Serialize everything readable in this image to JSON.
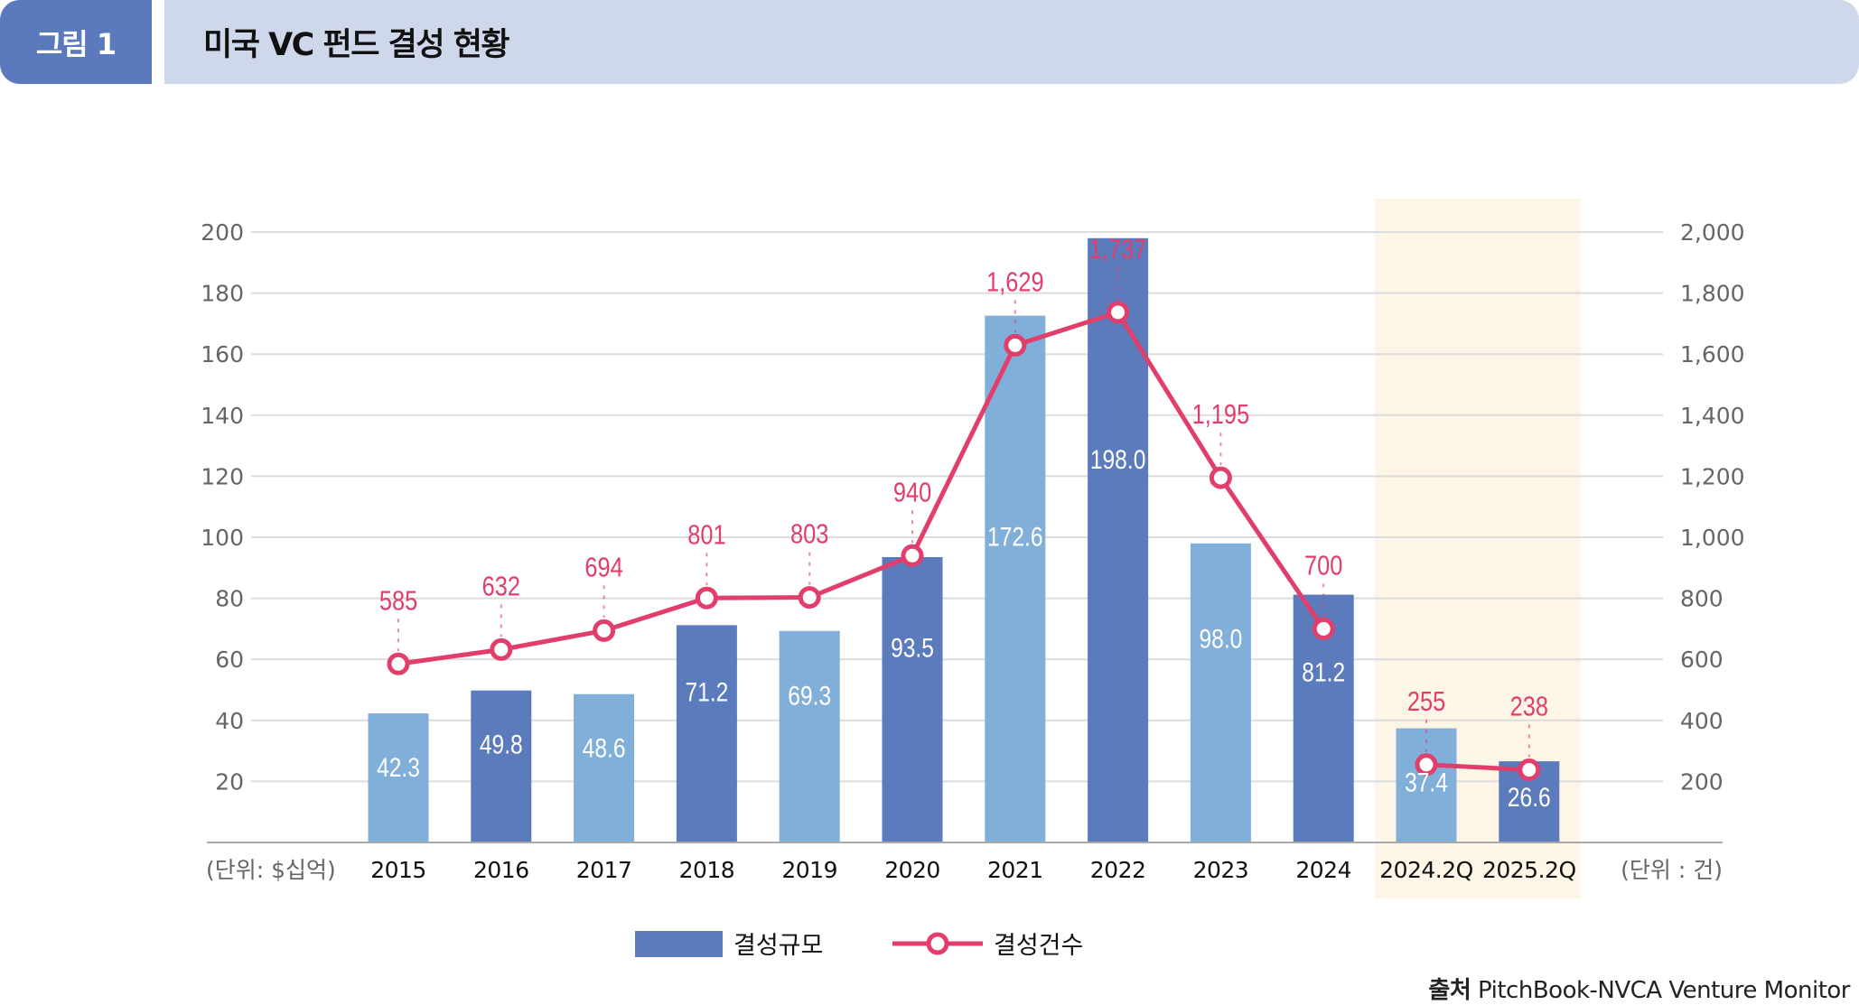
{
  "header": {
    "tag": "그림 1",
    "title": "미국 VC 펀드 결성 현황"
  },
  "colors": {
    "bar_dark": "#5b7bbd",
    "bar_light": "#80afd9",
    "line": "#e23e6b",
    "highlight": "#fdf5e6",
    "grid": "#dcdcdc"
  },
  "chart_data": {
    "type": "bar+line",
    "title": "미국 VC 펀드 결성 현황",
    "categories": [
      "2015",
      "2016",
      "2017",
      "2018",
      "2019",
      "2020",
      "2021",
      "2022",
      "2023",
      "2024",
      "2024.2Q",
      "2025.2Q"
    ],
    "series": [
      {
        "name": "결성규모",
        "type": "bar",
        "axis": "left",
        "values": [
          42.3,
          49.8,
          48.6,
          71.2,
          69.3,
          93.5,
          172.6,
          198.0,
          98.0,
          81.2,
          37.4,
          26.6
        ],
        "labels": [
          "42.3",
          "49.8",
          "48.6",
          "71.2",
          "69.3",
          "93.5",
          "172.6",
          "198.0",
          "98.0",
          "81.2",
          "37.4",
          "26.6"
        ],
        "shade": [
          "light",
          "dark",
          "light",
          "dark",
          "light",
          "dark",
          "light",
          "dark",
          "light",
          "dark",
          "light",
          "dark"
        ]
      },
      {
        "name": "결성건수",
        "type": "line",
        "axis": "right",
        "values": [
          585,
          632,
          694,
          801,
          803,
          940,
          1629,
          1737,
          1195,
          700,
          255,
          238
        ],
        "labels": [
          "585",
          "632",
          "694",
          "801",
          "803",
          "940",
          "1,629",
          "1,737",
          "1,195",
          "700",
          "255",
          "238"
        ],
        "segments": [
          [
            0,
            9
          ],
          [
            10,
            11
          ]
        ]
      }
    ],
    "left_axis": {
      "label": "(단위: $십억)",
      "ylim": [
        0,
        200
      ],
      "ticks": [
        "20",
        "40",
        "60",
        "80",
        "100",
        "120",
        "140",
        "160",
        "180",
        "200"
      ],
      "tick_values": [
        20,
        40,
        60,
        80,
        100,
        120,
        140,
        160,
        180,
        200
      ]
    },
    "right_axis": {
      "label": "(단위 : 건)",
      "ylim": [
        0,
        2000
      ],
      "ticks": [
        "200",
        "400",
        "600",
        "800",
        "1,000",
        "1,200",
        "1,400",
        "1,600",
        "1,800",
        "2,000"
      ],
      "tick_values": [
        200,
        400,
        600,
        800,
        1000,
        1200,
        1400,
        1600,
        1800,
        2000
      ]
    },
    "highlight_categories": [
      "2024.2Q",
      "2025.2Q"
    ],
    "grid": true,
    "legend": {
      "position": "bottom-center",
      "items": [
        "결성규모",
        "결성건수"
      ]
    }
  },
  "source": {
    "label": "출처",
    "text": "PitchBook-NVCA Venture Monitor"
  }
}
